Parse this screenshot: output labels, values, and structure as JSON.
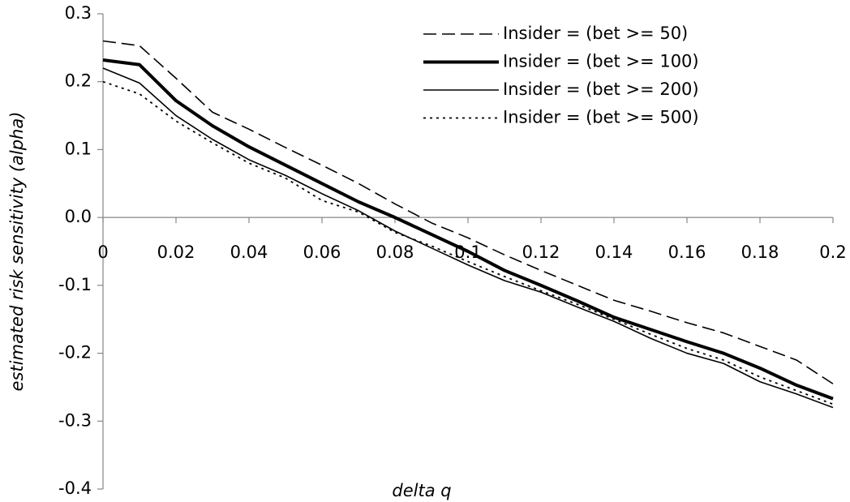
{
  "chart_data": {
    "type": "line",
    "xlabel": "delta q",
    "ylabel": "estimated risk sensitivity (alpha)",
    "x": [
      0,
      0.01,
      0.02,
      0.03,
      0.04,
      0.05,
      0.06,
      0.07,
      0.08,
      0.09,
      0.1,
      0.11,
      0.12,
      0.13,
      0.14,
      0.15,
      0.16,
      0.17,
      0.18,
      0.19,
      0.2
    ],
    "series": [
      {
        "name": "Insider = (bet >= 50)",
        "color": "#000000",
        "style": "dashed",
        "width": 1.6,
        "values": [
          0.26,
          0.253,
          0.205,
          0.155,
          0.13,
          0.103,
          0.077,
          0.05,
          0.02,
          -0.008,
          -0.03,
          -0.055,
          -0.078,
          -0.1,
          -0.122,
          -0.138,
          -0.155,
          -0.17,
          -0.19,
          -0.21,
          -0.245
        ]
      },
      {
        "name": "Insider = (bet >= 100)",
        "color": "#000000",
        "style": "solid",
        "width": 4,
        "values": [
          0.232,
          0.225,
          0.172,
          0.135,
          0.104,
          0.077,
          0.05,
          0.023,
          0.0,
          -0.025,
          -0.05,
          -0.078,
          -0.1,
          -0.123,
          -0.147,
          -0.165,
          -0.183,
          -0.2,
          -0.222,
          -0.247,
          -0.267
        ]
      },
      {
        "name": "Insider = (bet >= 200)",
        "color": "#000000",
        "style": "solid",
        "width": 1.6,
        "values": [
          0.22,
          0.198,
          0.15,
          0.115,
          0.085,
          0.062,
          0.035,
          0.01,
          -0.02,
          -0.045,
          -0.07,
          -0.093,
          -0.11,
          -0.132,
          -0.153,
          -0.178,
          -0.2,
          -0.215,
          -0.242,
          -0.26,
          -0.28
        ]
      },
      {
        "name": "Insider = (bet >= 500)",
        "color": "#000000",
        "style": "dotted",
        "width": 1.8,
        "values": [
          0.2,
          0.182,
          0.142,
          0.11,
          0.08,
          0.058,
          0.025,
          0.008,
          -0.022,
          -0.042,
          -0.065,
          -0.087,
          -0.108,
          -0.128,
          -0.15,
          -0.172,
          -0.193,
          -0.21,
          -0.235,
          -0.255,
          -0.275
        ]
      }
    ],
    "xlim": [
      0,
      0.2
    ],
    "xticks": [
      0,
      0.02,
      0.04,
      0.06,
      0.08,
      0.1,
      0.12,
      0.14,
      0.16,
      0.18,
      0.2
    ],
    "ylim": [
      -0.4,
      0.3
    ],
    "yticks": [
      0.3,
      0.2,
      0.1,
      {
        "value": 0,
        "label": "0.0"
      },
      -0.1,
      -0.2,
      -0.3,
      -0.4
    ],
    "legend": "upper right"
  }
}
